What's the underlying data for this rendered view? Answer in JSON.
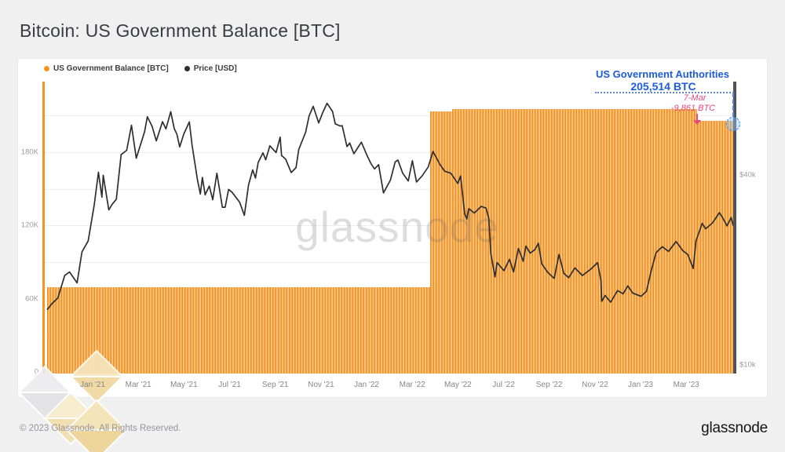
{
  "page": {
    "title": "Bitcoin: US Government Balance [BTC]",
    "watermark": "glassnode",
    "footer_copyright": "© 2023 Glassnode. All Rights Reserved.",
    "footer_brand": "glassnode"
  },
  "legend": [
    {
      "label": "US Government Balance [BTC]",
      "color": "#f7941e"
    },
    {
      "label": "Price [USD]",
      "color": "#2e2e31"
    }
  ],
  "annotation": {
    "title": "US Government Authorities",
    "value": "205,514 BTC",
    "event_date": "7-Mar",
    "event_change": "-9,861 BTC",
    "accent_color": "#1d5bd8",
    "event_color": "#e8487f"
  },
  "colors": {
    "balance_orange": "#f7941e",
    "bar_stripe_dark": "#ee9023",
    "bar_stripe_light": "#f8c177",
    "price_line": "#2e2e31",
    "price_axis": "#515156",
    "annotation_blue": "#1d5bd8",
    "annotation_blue_line": "#5b86e8",
    "annotation_pink": "#e8487f"
  },
  "chart_data": {
    "type": "mixed",
    "title": "Bitcoin: US Government Balance [BTC]",
    "x_axis": {
      "labels": [
        "Jan '21",
        "Mar '21",
        "May '21",
        "Jul '21",
        "Sep '21",
        "Nov '21",
        "Jan '22",
        "Mar '22",
        "May '22",
        "Jul '22",
        "Sep '22",
        "Nov '22",
        "Jan '23",
        "Mar '23"
      ],
      "range_note": "Nov 2020 to May 2023, x stored as fraction 0-1 of plot width"
    },
    "y_left": {
      "unit": "BTC",
      "scale": "linear",
      "ticks": [
        {
          "value": 0,
          "label": "0"
        },
        {
          "value": 60000,
          "label": "60K"
        },
        {
          "value": 120000,
          "label": "120K"
        },
        {
          "value": 180000,
          "label": "180K"
        }
      ],
      "gridline_values": [
        30000,
        60000,
        90000,
        120000,
        150000,
        180000,
        210000
      ]
    },
    "y_right": {
      "unit": "USD",
      "scale": "log",
      "ticks": [
        {
          "value": 10,
          "label": "$10k"
        },
        {
          "value": 40,
          "label": "$40k"
        }
      ]
    },
    "series": [
      {
        "name": "US Government Balance [BTC]",
        "type": "step-area-bars",
        "axis": "left",
        "steps": [
          {
            "x0": 0.0034,
            "x1": 0.56,
            "value": 69640
          },
          {
            "x0": 0.56,
            "x1": 0.592,
            "value": 213400
          },
          {
            "x0": 0.592,
            "x1": 0.9476,
            "value": 215375
          },
          {
            "x0": 0.9476,
            "x1": 1.0,
            "value": 205514
          }
        ]
      },
      {
        "name": "Price [USD]",
        "type": "line",
        "axis": "right",
        "unit": "USD thousands",
        "points": [
          [
            0.004,
            15.0
          ],
          [
            0.01,
            15.6
          ],
          [
            0.019,
            16.3
          ],
          [
            0.029,
            19.2
          ],
          [
            0.036,
            19.7
          ],
          [
            0.047,
            18.2
          ],
          [
            0.054,
            22.8
          ],
          [
            0.063,
            24.7
          ],
          [
            0.072,
            32.2
          ],
          [
            0.078,
            40.8
          ],
          [
            0.083,
            34.0
          ],
          [
            0.085,
            39.9
          ],
          [
            0.093,
            31.0
          ],
          [
            0.098,
            32.3
          ],
          [
            0.104,
            33.5
          ],
          [
            0.111,
            46.4
          ],
          [
            0.119,
            47.9
          ],
          [
            0.126,
            57.5
          ],
          [
            0.133,
            45.2
          ],
          [
            0.145,
            54.9
          ],
          [
            0.149,
            61.2
          ],
          [
            0.156,
            57.0
          ],
          [
            0.162,
            51.3
          ],
          [
            0.171,
            59.0
          ],
          [
            0.176,
            56.0
          ],
          [
            0.183,
            63.5
          ],
          [
            0.188,
            56.2
          ],
          [
            0.192,
            53.8
          ],
          [
            0.196,
            49.1
          ],
          [
            0.202,
            54.0
          ],
          [
            0.21,
            58.9
          ],
          [
            0.214,
            49.7
          ],
          [
            0.222,
            38.4
          ],
          [
            0.226,
            34.8
          ],
          [
            0.229,
            39.3
          ],
          [
            0.233,
            34.6
          ],
          [
            0.239,
            36.9
          ],
          [
            0.244,
            33.4
          ],
          [
            0.25,
            40.5
          ],
          [
            0.258,
            31.6
          ],
          [
            0.262,
            31.6
          ],
          [
            0.267,
            36.0
          ],
          [
            0.272,
            35.3
          ],
          [
            0.283,
            32.8
          ],
          [
            0.29,
            29.8
          ],
          [
            0.296,
            37.2
          ],
          [
            0.302,
            41.5
          ],
          [
            0.306,
            39.1
          ],
          [
            0.31,
            43.8
          ],
          [
            0.317,
            47.0
          ],
          [
            0.321,
            44.7
          ],
          [
            0.327,
            49.5
          ],
          [
            0.336,
            47.1
          ],
          [
            0.342,
            52.7
          ],
          [
            0.344,
            46.1
          ],
          [
            0.35,
            44.9
          ],
          [
            0.358,
            40.7
          ],
          [
            0.365,
            42.2
          ],
          [
            0.369,
            48.2
          ],
          [
            0.379,
            54.7
          ],
          [
            0.384,
            61.6
          ],
          [
            0.39,
            66.0
          ],
          [
            0.398,
            58.5
          ],
          [
            0.404,
            63.2
          ],
          [
            0.41,
            67.5
          ],
          [
            0.418,
            63.6
          ],
          [
            0.422,
            58.1
          ],
          [
            0.429,
            57.2
          ],
          [
            0.432,
            57.3
          ],
          [
            0.439,
            49.2
          ],
          [
            0.443,
            50.5
          ],
          [
            0.449,
            46.7
          ],
          [
            0.46,
            50.8
          ],
          [
            0.468,
            46.2
          ],
          [
            0.474,
            43.4
          ],
          [
            0.479,
            41.8
          ],
          [
            0.485,
            43.1
          ],
          [
            0.492,
            35.1
          ],
          [
            0.502,
            38.5
          ],
          [
            0.509,
            44.0
          ],
          [
            0.513,
            44.6
          ],
          [
            0.52,
            40.5
          ],
          [
            0.528,
            38.3
          ],
          [
            0.534,
            44.4
          ],
          [
            0.54,
            38.0
          ],
          [
            0.548,
            39.7
          ],
          [
            0.557,
            42.4
          ],
          [
            0.564,
            47.5
          ],
          [
            0.574,
            43.2
          ],
          [
            0.581,
            41.1
          ],
          [
            0.59,
            40.5
          ],
          [
            0.6,
            37.6
          ],
          [
            0.604,
            39.7
          ],
          [
            0.61,
            30.1
          ],
          [
            0.613,
            29.0
          ],
          [
            0.616,
            31.3
          ],
          [
            0.624,
            30.3
          ],
          [
            0.634,
            31.8
          ],
          [
            0.641,
            31.4
          ],
          [
            0.645,
            29.1
          ],
          [
            0.648,
            22.5
          ],
          [
            0.654,
            19.0
          ],
          [
            0.657,
            21.1
          ],
          [
            0.667,
            19.9
          ],
          [
            0.675,
            21.6
          ],
          [
            0.681,
            19.7
          ],
          [
            0.688,
            23.4
          ],
          [
            0.695,
            21.3
          ],
          [
            0.699,
            23.8
          ],
          [
            0.705,
            22.6
          ],
          [
            0.712,
            23.2
          ],
          [
            0.717,
            24.3
          ],
          [
            0.722,
            20.9
          ],
          [
            0.731,
            19.6
          ],
          [
            0.74,
            18.8
          ],
          [
            0.747,
            22.4
          ],
          [
            0.754,
            19.5
          ],
          [
            0.761,
            18.9
          ],
          [
            0.77,
            20.3
          ],
          [
            0.781,
            19.2
          ],
          [
            0.793,
            20.1
          ],
          [
            0.803,
            21.1
          ],
          [
            0.808,
            18.5
          ],
          [
            0.809,
            15.9
          ],
          [
            0.814,
            16.6
          ],
          [
            0.822,
            15.8
          ],
          [
            0.832,
            17.2
          ],
          [
            0.84,
            16.8
          ],
          [
            0.847,
            17.8
          ],
          [
            0.854,
            16.9
          ],
          [
            0.866,
            16.5
          ],
          [
            0.874,
            17.1
          ],
          [
            0.881,
            19.9
          ],
          [
            0.888,
            22.7
          ],
          [
            0.897,
            23.7
          ],
          [
            0.906,
            22.9
          ],
          [
            0.917,
            24.6
          ],
          [
            0.927,
            23.0
          ],
          [
            0.934,
            22.4
          ],
          [
            0.942,
            20.2
          ],
          [
            0.946,
            24.7
          ],
          [
            0.955,
            28.1
          ],
          [
            0.96,
            27.0
          ],
          [
            0.97,
            28.2
          ],
          [
            0.98,
            30.4
          ],
          [
            0.985,
            29.2
          ],
          [
            0.991,
            27.6
          ],
          [
            0.997,
            29.3
          ],
          [
            1.0,
            27.7
          ]
        ]
      }
    ],
    "annotations": [
      {
        "text": "US Government Authorities",
        "value": "205,514 BTC",
        "color": "#1d5bd8",
        "target": "final balance"
      },
      {
        "text": "7-Mar",
        "value": "-9,861 BTC",
        "color": "#e8487f",
        "target": "step down in balance, March 7 2023"
      }
    ],
    "legend_position": "top-left",
    "grid": "horizontal-only"
  }
}
